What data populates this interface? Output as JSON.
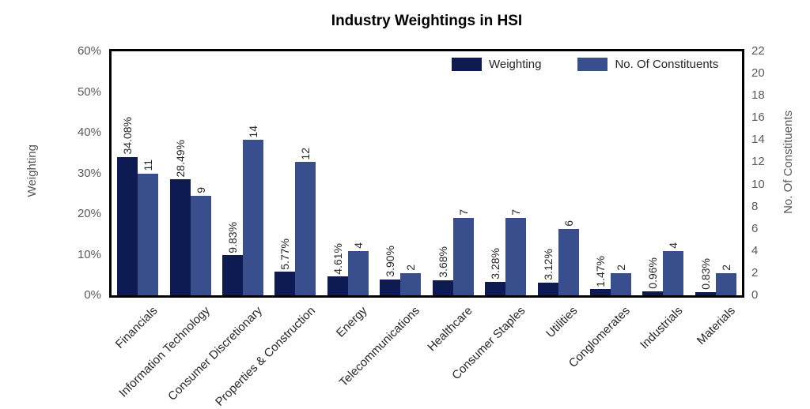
{
  "chart_data": {
    "type": "bar",
    "title": "Industry Weightings in HSI",
    "categories": [
      "Financials",
      "Information Technology",
      "Consumer Discretionary",
      "Properties & Construction",
      "Energy",
      "Telecommunications",
      "Healthcare",
      "Consumer Staples",
      "Utilities",
      "Conglomerates",
      "Industrials",
      "Materials"
    ],
    "series": [
      {
        "name": "Weighting",
        "axis": "left",
        "color": "#0e1a52",
        "values": [
          34.08,
          28.49,
          9.83,
          5.77,
          4.61,
          3.9,
          3.68,
          3.28,
          3.12,
          1.47,
          0.96,
          0.83
        ],
        "labels": [
          "34.08%",
          "28.49%",
          "9.83%",
          "5.77%",
          "4.61%",
          "3.90%",
          "3.68%",
          "3.28%",
          "3.12%",
          "1.47%",
          "0.96%",
          "0.83%"
        ]
      },
      {
        "name": "No. Of Constituents",
        "axis": "right",
        "color": "#394e8d",
        "values": [
          11,
          9,
          14,
          12,
          4,
          2,
          7,
          7,
          6,
          2,
          4,
          2
        ],
        "labels": [
          "11",
          "9",
          "14",
          "12",
          "4",
          "2",
          "7",
          "7",
          "6",
          "2",
          "4",
          "2"
        ]
      }
    ],
    "left_axis": {
      "label": "Weighting",
      "min": 0,
      "max": 60,
      "step": 10,
      "tick_suffix": "%"
    },
    "right_axis": {
      "label": "No. Of Constituents",
      "min": 0,
      "max": 22,
      "step": 2
    },
    "legend_position": "top-right-inside",
    "grid": false,
    "frame_color": "#000000",
    "tick_text_color": "#595959"
  }
}
